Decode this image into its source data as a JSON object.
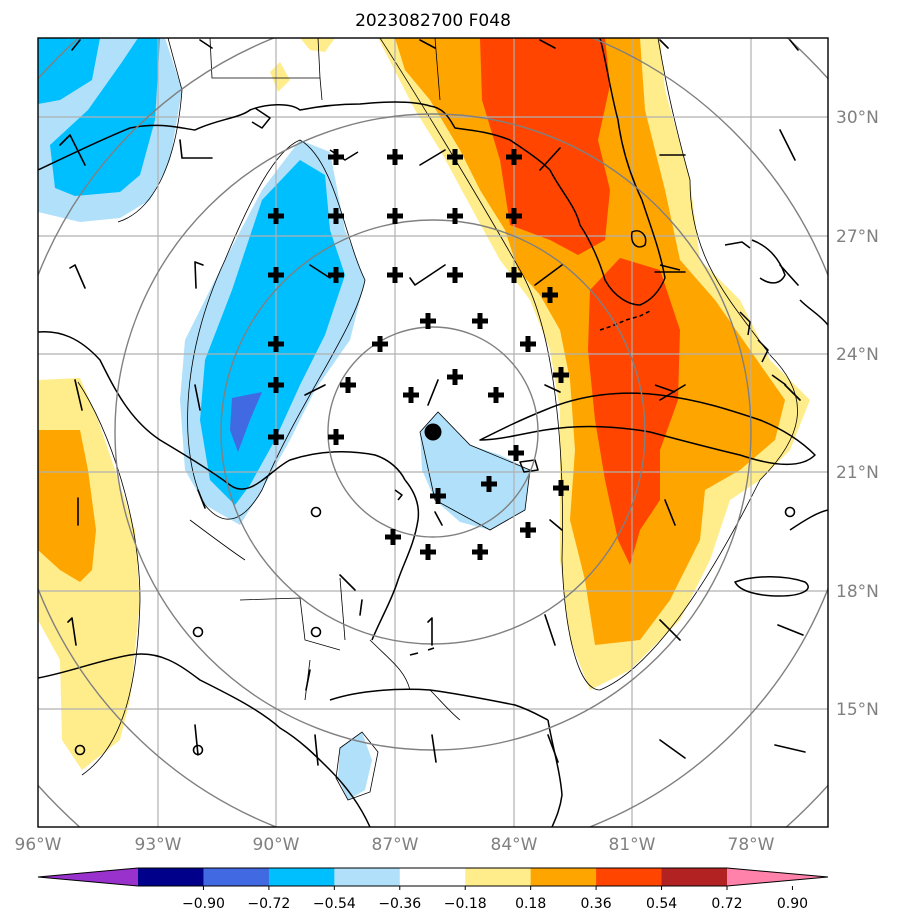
{
  "title": "2023082700 F048",
  "map": {
    "lat_labels": [
      "30°N",
      "27°N",
      "24°N",
      "21°N",
      "18°N",
      "15°N"
    ],
    "lon_labels": [
      "96°W",
      "93°W",
      "90°W",
      "87°W",
      "84°W",
      "81°W",
      "78°W"
    ],
    "storm_center": {
      "lat": 21.9,
      "lon": -86.0
    },
    "range_rings": 6
  },
  "colorbar": {
    "ticks": [
      "−0.90",
      "−0.72",
      "−0.54",
      "−0.36",
      "−0.18",
      "0.18",
      "0.36",
      "0.54",
      "0.72",
      "0.90"
    ],
    "colors": [
      "#9932cc",
      "#00008b",
      "#4169e1",
      "#00bfff",
      "#b0e0fa",
      "#ffffff",
      "#ffec8b",
      "#ffa500",
      "#ff4500",
      "#b22222",
      "#ff82ab"
    ]
  }
}
